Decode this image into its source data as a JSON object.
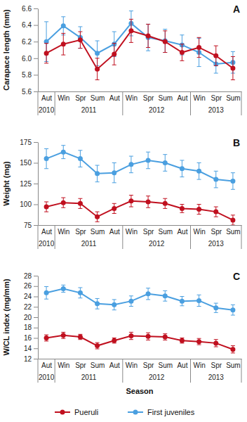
{
  "chart_data": [
    {
      "type": "line",
      "title": "A",
      "y_label": "Carapace length (mm)",
      "categories": [
        "Aut",
        "Win",
        "Spr",
        "Sum",
        "Aut",
        "Win",
        "Spr",
        "Sum",
        "Aut",
        "Win",
        "Spr",
        "Sum"
      ],
      "x_groups": [
        {
          "label": "2010",
          "count": 1
        },
        {
          "label": "2011",
          "count": 4
        },
        {
          "label": "2012",
          "count": 4
        },
        {
          "label": "2013",
          "count": 3
        }
      ],
      "ylim": [
        5.6,
        6.6
      ],
      "yticks": [
        5.6,
        5.8,
        {
          "value": 6,
          "label": "6.0"
        },
        6.2,
        6.4,
        6.6
      ],
      "marker": "circle",
      "line_style": "solid",
      "series": [
        {
          "color": "#c0101f",
          "values": [
            6.06,
            6.17,
            6.22,
            5.87,
            6.05,
            6.33,
            6.27,
            6.2,
            6.07,
            6.13,
            6.03,
            5.88
          ],
          "errors": [
            0.12,
            0.13,
            0.1,
            0.13,
            0.13,
            0.14,
            0.14,
            0.13,
            0.1,
            0.12,
            0.12,
            0.14
          ]
        },
        {
          "color": "#4a9fe0",
          "values": [
            6.2,
            6.39,
            6.25,
            6.06,
            6.17,
            6.42,
            6.25,
            6.21,
            6.16,
            6.07,
            5.93,
            5.95
          ],
          "errors": [
            0.24,
            0.11,
            0.13,
            0.15,
            0.15,
            0.15,
            0.16,
            0.14,
            0.12,
            0.17,
            0.11,
            0.13
          ]
        }
      ]
    },
    {
      "type": "line",
      "title": "B",
      "y_label": "Weight (mg)",
      "categories": [
        "Aut",
        "Win",
        "Spr",
        "Sum",
        "Aut",
        "Win",
        "Spr",
        "Sum",
        "Aut",
        "Win",
        "Spr",
        "Sum"
      ],
      "x_groups": [
        {
          "label": "2010",
          "count": 1
        },
        {
          "label": "2011",
          "count": 4
        },
        {
          "label": "2012",
          "count": 4
        },
        {
          "label": "2013",
          "count": 3
        }
      ],
      "ylim": [
        75,
        175
      ],
      "yticks": [
        75,
        100,
        125,
        150,
        175
      ],
      "marker": "circle",
      "line_style": "solid",
      "series": [
        {
          "color": "#c0101f",
          "values": [
            97,
            102,
            101,
            85,
            95,
            104,
            103,
            101,
            95,
            94,
            91,
            81
          ],
          "errors": [
            6,
            6,
            6,
            6,
            6,
            7,
            7,
            6,
            5,
            6,
            6,
            6
          ]
        },
        {
          "color": "#4a9fe0",
          "values": [
            155,
            163,
            155,
            137,
            138,
            148,
            153,
            150,
            143,
            140,
            130,
            128
          ],
          "errors": [
            12,
            8,
            10,
            10,
            12,
            10,
            10,
            10,
            10,
            10,
            10,
            10
          ]
        }
      ]
    },
    {
      "type": "line",
      "title": "C",
      "y_label": "W/CL index (mg/mm)",
      "x_label": "Season",
      "categories": [
        "Aut",
        "Win",
        "Spr",
        "Sum",
        "Aut",
        "Win",
        "Spr",
        "Sum",
        "Aut",
        "Win",
        "Spr",
        "Sum"
      ],
      "x_groups": [
        {
          "label": "2010",
          "count": 1
        },
        {
          "label": "2011",
          "count": 4
        },
        {
          "label": "2012",
          "count": 4
        },
        {
          "label": "2013",
          "count": 3
        }
      ],
      "ylim": [
        12,
        28
      ],
      "yticks": [
        12,
        14,
        16,
        18,
        20,
        22,
        24,
        26,
        28
      ],
      "marker": "circle",
      "line_style": "solid",
      "legend": "bottom",
      "series": [
        {
          "name": "Pueruli",
          "color": "#c0101f",
          "values": [
            16.0,
            16.5,
            16.2,
            14.5,
            15.5,
            16.4,
            16.3,
            16.2,
            15.5,
            15.3,
            15.0,
            13.8
          ],
          "errors": [
            0.6,
            0.6,
            0.5,
            0.6,
            0.5,
            0.7,
            0.7,
            0.6,
            0.5,
            0.6,
            0.7,
            0.7
          ]
        },
        {
          "name": "First juveniles",
          "color": "#4a9fe0",
          "values": [
            24.7,
            25.5,
            24.7,
            22.6,
            22.4,
            23.1,
            24.5,
            24.1,
            23.1,
            23.2,
            21.8,
            21.4
          ],
          "errors": [
            1.2,
            0.7,
            1.0,
            1.0,
            1.0,
            1.0,
            1.1,
            1.0,
            0.9,
            1.1,
            0.9,
            1.0
          ]
        }
      ]
    }
  ]
}
